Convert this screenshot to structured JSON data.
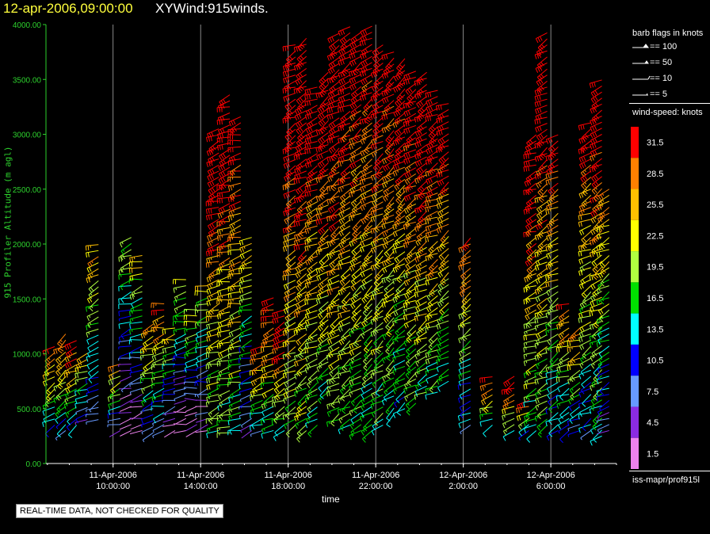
{
  "header": {
    "date_time": "12-apr-2006,09:00:00",
    "title": "XYWind:915winds."
  },
  "chart_data": {
    "type": "scatter",
    "title": "XYWind:915winds.",
    "xlabel": "time",
    "ylabel": "915 Profiler Altitude (m agl)",
    "ylim": [
      0,
      4000
    ],
    "xlim": [
      "2006-04-11 06:56",
      "2006-04-12 09:00"
    ],
    "y_ticks": [
      "0.00",
      "500.00",
      "1000.00",
      "1500.00",
      "2000.00",
      "2500.00",
      "3000.00",
      "3500.00",
      "4000.00"
    ],
    "x_ticks": [
      {
        "date": "11-Apr-2006",
        "time": "10:00:00"
      },
      {
        "date": "11-Apr-2006",
        "time": "14:00:00"
      },
      {
        "date": "11-Apr-2006",
        "time": "18:00:00"
      },
      {
        "date": "11-Apr-2006",
        "time": "22:00:00"
      },
      {
        "date": "12-Apr-2006",
        "time": "2:00:00"
      },
      {
        "date": "12-Apr-2006",
        "time": "6:00:00"
      }
    ],
    "grid": "vertical",
    "legend_position": "right",
    "profiles": [
      {
        "time": "11-Apr 07:20",
        "bottom": 350,
        "top": 1100,
        "speed": 21,
        "dir": 235
      },
      {
        "time": "11-Apr 07:50",
        "bottom": 300,
        "top": 1200,
        "speed": 20,
        "dir": 235
      },
      {
        "time": "11-Apr 08:20",
        "bottom": 350,
        "top": 1150,
        "speed": 22,
        "dir": 240
      },
      {
        "time": "11-Apr 08:50",
        "bottom": 400,
        "top": 1050,
        "speed": 18,
        "dir": 245
      },
      {
        "time": "11-Apr 09:20",
        "bottom": 400,
        "top": 2000,
        "speed": 16,
        "dir": 245
      },
      {
        "time": "11-Apr 10:20",
        "bottom": 300,
        "top": 950,
        "speed": 17,
        "dir": 250
      },
      {
        "time": "11-Apr 10:50",
        "bottom": 300,
        "top": 2080,
        "speed": 10,
        "dir": 250
      },
      {
        "time": "11-Apr 11:20",
        "bottom": 300,
        "top": 1900,
        "speed": 12,
        "dir": 255
      },
      {
        "time": "11-Apr 11:50",
        "bottom": 280,
        "top": 1300,
        "speed": 17,
        "dir": 250
      },
      {
        "time": "11-Apr 12:20",
        "bottom": 300,
        "top": 1500,
        "speed": 20,
        "dir": 255
      },
      {
        "time": "11-Apr 12:50",
        "bottom": 300,
        "top": 1250,
        "speed": 12,
        "dir": 255
      },
      {
        "time": "11-Apr 13:20",
        "bottom": 300,
        "top": 1700,
        "speed": 10,
        "dir": 260
      },
      {
        "time": "11-Apr 13:50",
        "bottom": 300,
        "top": 1400,
        "speed": 11,
        "dir": 260
      },
      {
        "time": "11-Apr 14:20",
        "bottom": 300,
        "top": 1650,
        "speed": 12,
        "dir": 255
      },
      {
        "time": "11-Apr 14:50",
        "bottom": 300,
        "top": 3100,
        "speed": 26,
        "dir": 250
      },
      {
        "time": "11-Apr 15:20",
        "bottom": 280,
        "top": 3400,
        "speed": 27,
        "dir": 255
      },
      {
        "time": "11-Apr 15:50",
        "bottom": 300,
        "top": 3200,
        "speed": 25,
        "dir": 255
      },
      {
        "time": "11-Apr 16:20",
        "bottom": 300,
        "top": 2100,
        "speed": 15,
        "dir": 250
      },
      {
        "time": "11-Apr 16:50",
        "bottom": 300,
        "top": 1100,
        "speed": 21,
        "dir": 250
      },
      {
        "time": "11-Apr 17:20",
        "bottom": 300,
        "top": 1550,
        "speed": 24,
        "dir": 250
      },
      {
        "time": "11-Apr 17:50",
        "bottom": 300,
        "top": 1450,
        "speed": 26,
        "dir": 245
      },
      {
        "time": "11-Apr 18:20",
        "bottom": 350,
        "top": 3850,
        "speed": 28,
        "dir": 245
      },
      {
        "time": "11-Apr 18:50",
        "bottom": 300,
        "top": 3900,
        "speed": 29,
        "dir": 240
      },
      {
        "time": "11-Apr 19:20",
        "bottom": 350,
        "top": 3450,
        "speed": 25,
        "dir": 245
      },
      {
        "time": "11-Apr 19:50",
        "bottom": 650,
        "top": 3600,
        "speed": 27,
        "dir": 240
      },
      {
        "time": "11-Apr 20:20",
        "bottom": 400,
        "top": 3950,
        "speed": 28,
        "dir": 240
      },
      {
        "time": "11-Apr 20:50",
        "bottom": 350,
        "top": 4000,
        "speed": 27,
        "dir": 240
      },
      {
        "time": "11-Apr 21:20",
        "bottom": 300,
        "top": 3980,
        "speed": 26,
        "dir": 235
      },
      {
        "time": "11-Apr 21:50",
        "bottom": 300,
        "top": 4000,
        "speed": 25,
        "dir": 235
      },
      {
        "time": "11-Apr 22:20",
        "bottom": 350,
        "top": 3850,
        "speed": 26,
        "dir": 235
      },
      {
        "time": "11-Apr 22:50",
        "bottom": 450,
        "top": 3800,
        "speed": 25,
        "dir": 235
      },
      {
        "time": "11-Apr 23:20",
        "bottom": 500,
        "top": 3700,
        "speed": 24,
        "dir": 235
      },
      {
        "time": "11-Apr 23:50",
        "bottom": 550,
        "top": 3600,
        "speed": 26,
        "dir": 240
      },
      {
        "time": "12-Apr 00:20",
        "bottom": 650,
        "top": 3600,
        "speed": 27,
        "dir": 240
      },
      {
        "time": "12-Apr 00:50",
        "bottom": 650,
        "top": 3400,
        "speed": 26,
        "dir": 240
      },
      {
        "time": "12-Apr 01:20",
        "bottom": 750,
        "top": 3300,
        "speed": 25,
        "dir": 240
      },
      {
        "time": "12-Apr 02:20",
        "bottom": 350,
        "top": 2100,
        "speed": 20,
        "dir": 240
      },
      {
        "time": "12-Apr 03:20",
        "bottom": 350,
        "top": 800,
        "speed": 22,
        "dir": 245
      },
      {
        "time": "12-Apr 04:20",
        "bottom": 300,
        "top": 800,
        "speed": 24,
        "dir": 245
      },
      {
        "time": "12-Apr 05:00",
        "bottom": 300,
        "top": 600,
        "speed": 22,
        "dir": 245
      },
      {
        "time": "12-Apr 05:20",
        "bottom": 300,
        "top": 3000,
        "speed": 26,
        "dir": 245
      },
      {
        "time": "12-Apr 05:50",
        "bottom": 350,
        "top": 3950,
        "speed": 27,
        "dir": 240
      },
      {
        "time": "12-Apr 06:20",
        "bottom": 300,
        "top": 3000,
        "speed": 22,
        "dir": 240
      },
      {
        "time": "12-Apr 06:50",
        "bottom": 300,
        "top": 1500,
        "speed": 20,
        "dir": 245
      },
      {
        "time": "12-Apr 07:20",
        "bottom": 300,
        "top": 1250,
        "speed": 18,
        "dir": 245
      },
      {
        "time": "12-Apr 07:50",
        "bottom": 300,
        "top": 3150,
        "speed": 22,
        "dir": 240
      },
      {
        "time": "12-Apr 08:20",
        "bottom": 250,
        "top": 3500,
        "speed": 24,
        "dir": 240
      },
      {
        "time": "12-Apr 08:40",
        "bottom": 300,
        "top": 2500,
        "speed": 18,
        "dir": 240
      }
    ]
  },
  "legend": {
    "barb_title": "barb flags in knots",
    "barb_items": [
      "== 100",
      "== 50",
      "== 10",
      "== 5"
    ],
    "speed_title": "wind-speed: knots",
    "speed_items": [
      {
        "label": "31.5",
        "color": "#ff0000"
      },
      {
        "label": "28.5",
        "color": "#ff8000"
      },
      {
        "label": "25.5",
        "color": "#ffc000"
      },
      {
        "label": "22.5",
        "color": "#ffff00"
      },
      {
        "label": "19.5",
        "color": "#b0ff40"
      },
      {
        "label": "16.5",
        "color": "#00e000"
      },
      {
        "label": "13.5",
        "color": "#00ffff"
      },
      {
        "label": "10.5",
        "color": "#0000ff"
      },
      {
        "label": "7.5",
        "color": "#6699ff"
      },
      {
        "label": "4.5",
        "color": "#8a2be2"
      },
      {
        "label": "1.5",
        "color": "#ee82ee"
      }
    ],
    "source": "iss-mapr/prof915l"
  },
  "footer": {
    "quality_note": "REAL-TIME DATA, NOT CHECKED FOR QUALITY"
  }
}
